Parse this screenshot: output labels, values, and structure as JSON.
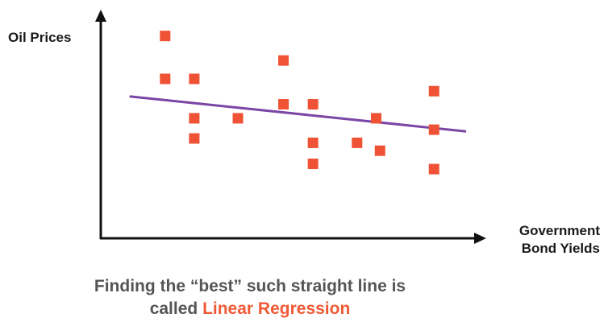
{
  "chart_data": {
    "type": "scatter",
    "ylabel": "Oil Prices",
    "xlabel_lines": [
      "Government",
      "Bond Yields"
    ],
    "xlim": [
      0,
      100
    ],
    "ylim": [
      0,
      100
    ],
    "grid": false,
    "points": [
      {
        "x": 16.8,
        "y": 92.4
      },
      {
        "x": 16.8,
        "y": 72.8
      },
      {
        "x": 24.4,
        "y": 72.8
      },
      {
        "x": 24.4,
        "y": 54.8
      },
      {
        "x": 24.4,
        "y": 45.6
      },
      {
        "x": 35.8,
        "y": 54.8
      },
      {
        "x": 47.7,
        "y": 81.2
      },
      {
        "x": 47.7,
        "y": 61.2
      },
      {
        "x": 55.4,
        "y": 61.2
      },
      {
        "x": 55.4,
        "y": 43.6
      },
      {
        "x": 55.4,
        "y": 34.0
      },
      {
        "x": 66.9,
        "y": 43.6
      },
      {
        "x": 71.9,
        "y": 54.8
      },
      {
        "x": 72.9,
        "y": 40.0
      },
      {
        "x": 87.0,
        "y": 67.2
      },
      {
        "x": 87.0,
        "y": 49.6
      },
      {
        "x": 87.0,
        "y": 31.6
      }
    ],
    "fit_line": {
      "x": [
        7.5,
        95.4
      ],
      "y": [
        64.8,
        48.8
      ]
    },
    "colors": {
      "points": "#ef5234",
      "fit_line": "#7b46a5",
      "axes": "#111111"
    }
  },
  "caption": {
    "line1": "Finding the “best” such straight line is",
    "line2_prefix": "called ",
    "line2_highlight": "Linear Regression",
    "highlight_color": "#ef5a36"
  }
}
